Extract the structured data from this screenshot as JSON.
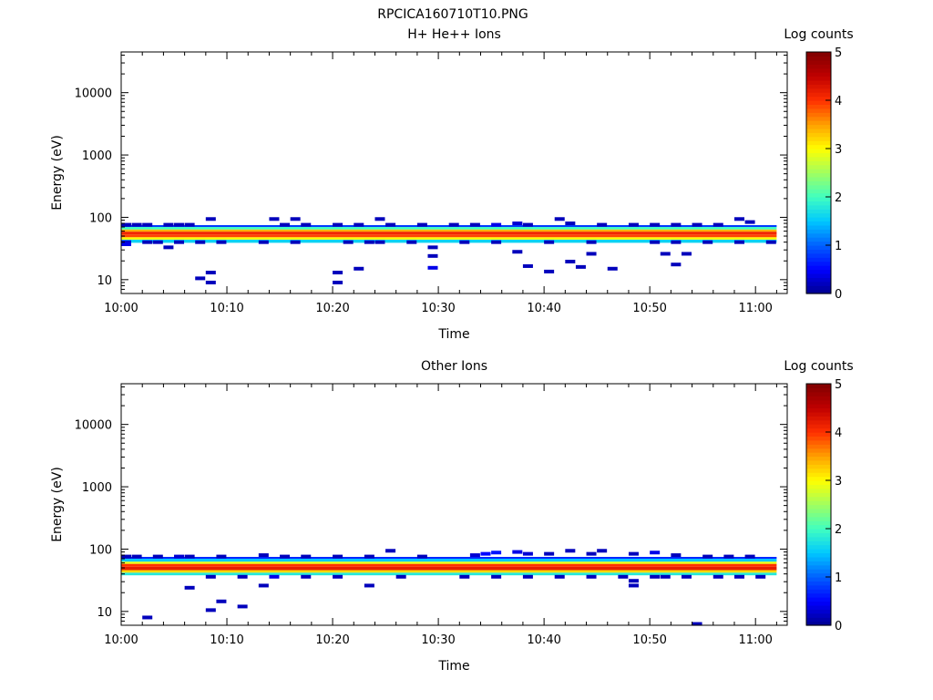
{
  "figure_title": "RPCICA160710T10.PNG",
  "colormap": [
    "#00008f",
    "#0000ff",
    "#0060ff",
    "#00c8ff",
    "#40ffc0",
    "#a0ff60",
    "#ffff00",
    "#ffa000",
    "#ff3000",
    "#c00000",
    "#800000"
  ],
  "chart_data": [
    {
      "type": "heatmap",
      "title": "H+ He++ Ions",
      "xlabel": "Time",
      "ylabel": "Energy (eV)",
      "x_ticks": [
        "10:00",
        "10:10",
        "10:20",
        "10:30",
        "10:40",
        "10:50",
        "11:00"
      ],
      "xlim": [
        "10:00",
        "11:03"
      ],
      "y_scale": "log",
      "ylim": [
        6,
        45000
      ],
      "y_ticks": [
        "10",
        "100",
        "1000",
        "10000"
      ],
      "colorbar": {
        "label": "Log counts",
        "range": [
          0,
          5
        ],
        "ticks": [
          "0",
          "1",
          "2",
          "3",
          "4",
          "5"
        ]
      },
      "main_band": [
        {
          "emin": 39,
          "emax": 44,
          "log_counts": 1.6
        },
        {
          "emin": 44,
          "emax": 48,
          "log_counts": 3.0
        },
        {
          "emin": 48,
          "emax": 53,
          "log_counts": 3.9
        },
        {
          "emin": 53,
          "emax": 59,
          "log_counts": 4.1
        },
        {
          "emin": 59,
          "emax": 64,
          "log_counts": 3.4
        },
        {
          "emin": 64,
          "emax": 70,
          "log_counts": 2.0
        },
        {
          "emin": 70,
          "emax": 75,
          "log_counts": 0.8
        }
      ],
      "sparse_counts": [
        {
          "time": "10:00",
          "energy": 76,
          "log_counts": 0.2
        },
        {
          "time": "10:01",
          "energy": 76,
          "log_counts": 0.2
        },
        {
          "time": "10:02",
          "energy": 76,
          "log_counts": 0.2
        },
        {
          "time": "10:04",
          "energy": 76,
          "log_counts": 0.2
        },
        {
          "time": "10:05",
          "energy": 76,
          "log_counts": 0.2
        },
        {
          "time": "10:06",
          "energy": 76,
          "log_counts": 0.2
        },
        {
          "time": "10:08",
          "energy": 94,
          "log_counts": 0.2
        },
        {
          "time": "10:14",
          "energy": 94,
          "log_counts": 0.2
        },
        {
          "time": "10:16",
          "energy": 94,
          "log_counts": 0.2
        },
        {
          "time": "10:15",
          "energy": 76,
          "log_counts": 0.2
        },
        {
          "time": "10:17",
          "energy": 76,
          "log_counts": 0.2
        },
        {
          "time": "10:20",
          "energy": 76,
          "log_counts": 0.2
        },
        {
          "time": "10:22",
          "energy": 76,
          "log_counts": 0.2
        },
        {
          "time": "10:24",
          "energy": 94,
          "log_counts": 0.2
        },
        {
          "time": "10:25",
          "energy": 76,
          "log_counts": 0.2
        },
        {
          "time": "10:28",
          "energy": 76,
          "log_counts": 0.2
        },
        {
          "time": "10:31",
          "energy": 76,
          "log_counts": 0.2
        },
        {
          "time": "10:33",
          "energy": 76,
          "log_counts": 0.2
        },
        {
          "time": "10:35",
          "energy": 76,
          "log_counts": 0.4
        },
        {
          "time": "10:37",
          "energy": 80,
          "log_counts": 0.3
        },
        {
          "time": "10:38",
          "energy": 76,
          "log_counts": 0.2
        },
        {
          "time": "10:41",
          "energy": 94,
          "log_counts": 0.2
        },
        {
          "time": "10:42",
          "energy": 80,
          "log_counts": 0.2
        },
        {
          "time": "10:45",
          "energy": 76,
          "log_counts": 0.2
        },
        {
          "time": "10:48",
          "energy": 76,
          "log_counts": 0.2
        },
        {
          "time": "10:50",
          "energy": 76,
          "log_counts": 0.2
        },
        {
          "time": "10:52",
          "energy": 76,
          "log_counts": 0.2
        },
        {
          "time": "10:54",
          "energy": 76,
          "log_counts": 0.2
        },
        {
          "time": "10:56",
          "energy": 76,
          "log_counts": 0.2
        },
        {
          "time": "10:58",
          "energy": 94,
          "log_counts": 0.2
        },
        {
          "time": "10:59",
          "energy": 84,
          "log_counts": 0.2
        },
        {
          "time": "10:00",
          "energy": 40,
          "log_counts": 0.3
        },
        {
          "time": "10:00",
          "energy": 37,
          "log_counts": 0.4
        },
        {
          "time": "10:02",
          "energy": 40,
          "log_counts": 0.2
        },
        {
          "time": "10:03",
          "energy": 40,
          "log_counts": 0.2
        },
        {
          "time": "10:04",
          "energy": 33,
          "log_counts": 0.2
        },
        {
          "time": "10:05",
          "energy": 40,
          "log_counts": 0.2
        },
        {
          "time": "10:07",
          "energy": 40,
          "log_counts": 0.2
        },
        {
          "time": "10:09",
          "energy": 40,
          "log_counts": 0.2
        },
        {
          "time": "10:13",
          "energy": 40,
          "log_counts": 0.2
        },
        {
          "time": "10:16",
          "energy": 40,
          "log_counts": 0.2
        },
        {
          "time": "10:21",
          "energy": 40,
          "log_counts": 0.2
        },
        {
          "time": "10:23",
          "energy": 40,
          "log_counts": 0.2
        },
        {
          "time": "10:24",
          "energy": 40,
          "log_counts": 0.2
        },
        {
          "time": "10:27",
          "energy": 40,
          "log_counts": 0.2
        },
        {
          "time": "10:29",
          "energy": 33,
          "log_counts": 0.2
        },
        {
          "time": "10:32",
          "energy": 40,
          "log_counts": 0.2
        },
        {
          "time": "10:35",
          "energy": 40,
          "log_counts": 0.2
        },
        {
          "time": "10:37",
          "energy": 28,
          "log_counts": 0.2
        },
        {
          "time": "10:40",
          "energy": 40,
          "log_counts": 0.2
        },
        {
          "time": "10:44",
          "energy": 40,
          "log_counts": 0.2
        },
        {
          "time": "10:50",
          "energy": 40,
          "log_counts": 0.2
        },
        {
          "time": "10:52",
          "energy": 40,
          "log_counts": 0.2
        },
        {
          "time": "10:55",
          "energy": 40,
          "log_counts": 0.2
        },
        {
          "time": "10:58",
          "energy": 40,
          "log_counts": 0.2
        },
        {
          "time": "11:01",
          "energy": 40,
          "log_counts": 0.2
        },
        {
          "time": "10:07",
          "energy": 10.5,
          "log_counts": 0.2
        },
        {
          "time": "10:08",
          "energy": 9,
          "log_counts": 0.2
        },
        {
          "time": "10:08",
          "energy": 13,
          "log_counts": 0.2
        },
        {
          "time": "10:20",
          "energy": 13,
          "log_counts": 0.2
        },
        {
          "time": "10:20",
          "energy": 9,
          "log_counts": 0.2
        },
        {
          "time": "10:22",
          "energy": 15,
          "log_counts": 0.2
        },
        {
          "time": "10:29",
          "energy": 24,
          "log_counts": 0.2
        },
        {
          "time": "10:29",
          "energy": 15.5,
          "log_counts": 0.4
        },
        {
          "time": "10:38",
          "energy": 16.5,
          "log_counts": 0.2
        },
        {
          "time": "10:40",
          "energy": 13.5,
          "log_counts": 0.2
        },
        {
          "time": "10:42",
          "energy": 19.5,
          "log_counts": 0.2
        },
        {
          "time": "10:43",
          "energy": 16,
          "log_counts": 0.2
        },
        {
          "time": "10:44",
          "energy": 26,
          "log_counts": 0.2
        },
        {
          "time": "10:46",
          "energy": 15,
          "log_counts": 0.2
        },
        {
          "time": "10:51",
          "energy": 26,
          "log_counts": 0.2
        },
        {
          "time": "10:52",
          "energy": 17.5,
          "log_counts": 0.2
        },
        {
          "time": "10:53",
          "energy": 26,
          "log_counts": 0.2
        }
      ]
    },
    {
      "type": "heatmap",
      "title": "Other Ions",
      "xlabel": "Time",
      "ylabel": "Energy (eV)",
      "x_ticks": [
        "10:00",
        "10:10",
        "10:20",
        "10:30",
        "10:40",
        "10:50",
        "11:00"
      ],
      "xlim": [
        "10:00",
        "11:03"
      ],
      "y_scale": "log",
      "ylim": [
        6,
        45000
      ],
      "y_ticks": [
        "10",
        "100",
        "1000",
        "10000"
      ],
      "colorbar": {
        "label": "Log counts",
        "range": [
          0,
          5
        ],
        "ticks": [
          "0",
          "1",
          "2",
          "3",
          "4",
          "5"
        ]
      },
      "main_band": [
        {
          "emin": 38,
          "emax": 42,
          "log_counts": 1.8
        },
        {
          "emin": 42,
          "emax": 46,
          "log_counts": 3.2
        },
        {
          "emin": 46,
          "emax": 52,
          "log_counts": 4.2
        },
        {
          "emin": 52,
          "emax": 58,
          "log_counts": 4.0
        },
        {
          "emin": 58,
          "emax": 63,
          "log_counts": 2.9
        },
        {
          "emin": 63,
          "emax": 70,
          "log_counts": 1.5
        },
        {
          "emin": 70,
          "emax": 75,
          "log_counts": 0.7
        }
      ],
      "sparse_counts": [
        {
          "time": "10:00",
          "energy": 76,
          "log_counts": 0.2
        },
        {
          "time": "10:01",
          "energy": 76,
          "log_counts": 0.2
        },
        {
          "time": "10:03",
          "energy": 76,
          "log_counts": 0.2
        },
        {
          "time": "10:05",
          "energy": 76,
          "log_counts": 0.3
        },
        {
          "time": "10:06",
          "energy": 76,
          "log_counts": 0.2
        },
        {
          "time": "10:09",
          "energy": 76,
          "log_counts": 0.2
        },
        {
          "time": "10:13",
          "energy": 80,
          "log_counts": 0.2
        },
        {
          "time": "10:15",
          "energy": 76,
          "log_counts": 0.2
        },
        {
          "time": "10:17",
          "energy": 76,
          "log_counts": 0.2
        },
        {
          "time": "10:20",
          "energy": 76,
          "log_counts": 0.2
        },
        {
          "time": "10:23",
          "energy": 76,
          "log_counts": 0.2
        },
        {
          "time": "10:25",
          "energy": 94,
          "log_counts": 0.2
        },
        {
          "time": "10:28",
          "energy": 76,
          "log_counts": 0.2
        },
        {
          "time": "10:33",
          "energy": 80,
          "log_counts": 0.3
        },
        {
          "time": "10:34",
          "energy": 84,
          "log_counts": 0.5
        },
        {
          "time": "10:35",
          "energy": 88,
          "log_counts": 0.6
        },
        {
          "time": "10:37",
          "energy": 90,
          "log_counts": 0.4
        },
        {
          "time": "10:38",
          "energy": 84,
          "log_counts": 0.3
        },
        {
          "time": "10:40",
          "energy": 84,
          "log_counts": 0.2
        },
        {
          "time": "10:42",
          "energy": 94,
          "log_counts": 0.2
        },
        {
          "time": "10:44",
          "energy": 84,
          "log_counts": 0.2
        },
        {
          "time": "10:45",
          "energy": 94,
          "log_counts": 0.2
        },
        {
          "time": "10:48",
          "energy": 84,
          "log_counts": 0.2
        },
        {
          "time": "10:50",
          "energy": 88,
          "log_counts": 0.4
        },
        {
          "time": "10:52",
          "energy": 80,
          "log_counts": 0.2
        },
        {
          "time": "10:55",
          "energy": 76,
          "log_counts": 0.2
        },
        {
          "time": "10:57",
          "energy": 76,
          "log_counts": 0.2
        },
        {
          "time": "10:59",
          "energy": 76,
          "log_counts": 0.2
        },
        {
          "time": "10:08",
          "energy": 36,
          "log_counts": 0.2
        },
        {
          "time": "10:11",
          "energy": 36,
          "log_counts": 0.2
        },
        {
          "time": "10:14",
          "energy": 36,
          "log_counts": 0.4
        },
        {
          "time": "10:17",
          "energy": 36,
          "log_counts": 0.2
        },
        {
          "time": "10:20",
          "energy": 36,
          "log_counts": 0.2
        },
        {
          "time": "10:26",
          "energy": 36,
          "log_counts": 0.2
        },
        {
          "time": "10:32",
          "energy": 36,
          "log_counts": 0.2
        },
        {
          "time": "10:35",
          "energy": 36,
          "log_counts": 0.2
        },
        {
          "time": "10:38",
          "energy": 36,
          "log_counts": 0.2
        },
        {
          "time": "10:41",
          "energy": 36,
          "log_counts": 0.2
        },
        {
          "time": "10:44",
          "energy": 36,
          "log_counts": 0.2
        },
        {
          "time": "10:47",
          "energy": 36,
          "log_counts": 0.2
        },
        {
          "time": "10:50",
          "energy": 36,
          "log_counts": 0.2
        },
        {
          "time": "10:51",
          "energy": 36,
          "log_counts": 0.2
        },
        {
          "time": "10:53",
          "energy": 36,
          "log_counts": 0.2
        },
        {
          "time": "10:56",
          "energy": 36,
          "log_counts": 0.2
        },
        {
          "time": "10:58",
          "energy": 36,
          "log_counts": 0.2
        },
        {
          "time": "11:00",
          "energy": 36,
          "log_counts": 0.2
        },
        {
          "time": "10:06",
          "energy": 24,
          "log_counts": 0.2
        },
        {
          "time": "10:13",
          "energy": 26,
          "log_counts": 0.2
        },
        {
          "time": "10:23",
          "energy": 26,
          "log_counts": 0.2
        },
        {
          "time": "10:48",
          "energy": 26,
          "log_counts": 0.2
        },
        {
          "time": "10:48",
          "energy": 31,
          "log_counts": 0.2
        },
        {
          "time": "10:08",
          "energy": 10.5,
          "log_counts": 0.2
        },
        {
          "time": "10:09",
          "energy": 14.5,
          "log_counts": 0.2
        },
        {
          "time": "10:11",
          "energy": 12,
          "log_counts": 0.2
        },
        {
          "time": "10:02",
          "energy": 8,
          "log_counts": 0.2
        },
        {
          "time": "10:54",
          "energy": 6.3,
          "log_counts": 0.2
        }
      ]
    }
  ]
}
